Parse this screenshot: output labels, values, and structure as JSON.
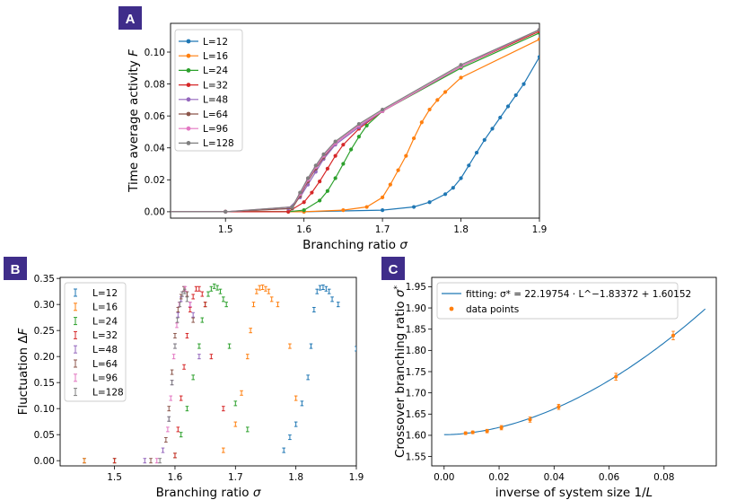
{
  "panel_labels": [
    "A",
    "B",
    "C"
  ],
  "colors": {
    "L=12": "#1f77b4",
    "L=16": "#ff7f0e",
    "L=24": "#2ca02c",
    "L=32": "#d62728",
    "L=48": "#9467bd",
    "L=64": "#8c564b",
    "L=96": "#e377c2",
    "L=128": "#7f7f7f",
    "badge": "#3f2d8a"
  },
  "chart_data": [
    {
      "id": "A",
      "type": "line",
      "xlabel": "Branching ratio σ",
      "ylabel": "Time average activity F",
      "xlim": [
        1.43,
        1.9
      ],
      "ylim": [
        -0.004,
        0.118
      ],
      "xticks": [
        "1.5",
        "1.6",
        "1.7",
        "1.8",
        "1.9"
      ],
      "xtick_values": [
        1.5,
        1.6,
        1.7,
        1.8,
        1.9
      ],
      "yticks": [
        "0.00",
        "0.02",
        "0.04",
        "0.06",
        "0.08",
        "0.10"
      ],
      "ytick_values": [
        0,
        0.02,
        0.04,
        0.06,
        0.08,
        0.1
      ],
      "legend": "top-left",
      "series": [
        {
          "name": "L=12",
          "x": [
            1.4,
            1.5,
            1.6,
            1.7,
            1.74,
            1.76,
            1.78,
            1.79,
            1.8,
            1.81,
            1.82,
            1.83,
            1.84,
            1.85,
            1.86,
            1.87,
            1.88,
            1.9
          ],
          "y": [
            0,
            0,
            0,
            0.001,
            0.003,
            0.006,
            0.011,
            0.015,
            0.021,
            0.029,
            0.037,
            0.045,
            0.052,
            0.059,
            0.066,
            0.073,
            0.08,
            0.097
          ]
        },
        {
          "name": "L=16",
          "x": [
            1.4,
            1.5,
            1.6,
            1.65,
            1.68,
            1.7,
            1.71,
            1.72,
            1.73,
            1.74,
            1.75,
            1.76,
            1.77,
            1.78,
            1.8,
            1.9
          ],
          "y": [
            0,
            0,
            0,
            0.001,
            0.003,
            0.009,
            0.017,
            0.026,
            0.035,
            0.046,
            0.056,
            0.064,
            0.07,
            0.075,
            0.084,
            0.108
          ]
        },
        {
          "name": "L=24",
          "x": [
            1.4,
            1.5,
            1.58,
            1.6,
            1.62,
            1.63,
            1.64,
            1.65,
            1.66,
            1.67,
            1.68,
            1.7,
            1.8,
            1.9
          ],
          "y": [
            0,
            0,
            0,
            0.001,
            0.007,
            0.013,
            0.021,
            0.03,
            0.039,
            0.047,
            0.054,
            0.063,
            0.09,
            0.112
          ]
        },
        {
          "name": "L=32",
          "x": [
            1.4,
            1.5,
            1.58,
            1.6,
            1.61,
            1.62,
            1.63,
            1.64,
            1.65,
            1.67,
            1.7,
            1.8,
            1.9
          ],
          "y": [
            0,
            0,
            0,
            0.006,
            0.012,
            0.019,
            0.027,
            0.035,
            0.042,
            0.052,
            0.063,
            0.091,
            0.113
          ]
        },
        {
          "name": "L=48",
          "x": [
            1.4,
            1.5,
            1.58,
            1.595,
            1.605,
            1.615,
            1.625,
            1.64,
            1.67,
            1.7,
            1.8,
            1.9
          ],
          "y": [
            0,
            0,
            0.002,
            0.009,
            0.017,
            0.025,
            0.033,
            0.042,
            0.053,
            0.063,
            0.091,
            0.114
          ]
        },
        {
          "name": "L=64",
          "x": [
            1.4,
            1.5,
            1.585,
            1.595,
            1.605,
            1.615,
            1.625,
            1.64,
            1.67,
            1.7,
            1.8,
            1.9
          ],
          "y": [
            0,
            0,
            0.002,
            0.01,
            0.019,
            0.027,
            0.034,
            0.043,
            0.054,
            0.063,
            0.091,
            0.114
          ]
        },
        {
          "name": "L=96",
          "x": [
            1.4,
            1.5,
            1.585,
            1.595,
            1.605,
            1.615,
            1.625,
            1.64,
            1.67,
            1.7,
            1.8,
            1.9
          ],
          "y": [
            0,
            0,
            0.003,
            0.011,
            0.02,
            0.028,
            0.035,
            0.043,
            0.054,
            0.063,
            0.091,
            0.114
          ]
        },
        {
          "name": "L=128",
          "x": [
            1.4,
            1.5,
            1.585,
            1.595,
            1.605,
            1.615,
            1.625,
            1.64,
            1.67,
            1.7,
            1.8,
            1.9
          ],
          "y": [
            0,
            0,
            0.003,
            0.012,
            0.021,
            0.029,
            0.036,
            0.044,
            0.055,
            0.064,
            0.092,
            0.114
          ]
        }
      ]
    },
    {
      "id": "B",
      "type": "scatter",
      "xlabel": "Branching ratio σ",
      "ylabel": "Fluctuation ΔF",
      "xlim": [
        1.41,
        1.9
      ],
      "ylim": [
        -0.01,
        0.352
      ],
      "xticks": [
        "1.5",
        "1.6",
        "1.7",
        "1.8",
        "1.9"
      ],
      "xtick_values": [
        1.5,
        1.6,
        1.7,
        1.8,
        1.9
      ],
      "yticks": [
        "0.00",
        "0.05",
        "0.10",
        "0.15",
        "0.20",
        "0.25",
        "0.30",
        "0.35"
      ],
      "ytick_values": [
        0,
        0.05,
        0.1,
        0.15,
        0.2,
        0.25,
        0.3,
        0.35
      ],
      "legend": "top-left",
      "series": [
        {
          "name": "L=12",
          "x": [
            1.45,
            1.78,
            1.79,
            1.8,
            1.81,
            1.82,
            1.825,
            1.83,
            1.835,
            1.84,
            1.845,
            1.85,
            1.855,
            1.86,
            1.87,
            1.9
          ],
          "y": [
            0,
            0.02,
            0.045,
            0.07,
            0.11,
            0.16,
            0.22,
            0.29,
            0.325,
            0.332,
            0.333,
            0.33,
            0.325,
            0.31,
            0.3,
            0.215
          ]
        },
        {
          "name": "L=16",
          "x": [
            1.45,
            1.68,
            1.7,
            1.71,
            1.72,
            1.725,
            1.73,
            1.735,
            1.74,
            1.745,
            1.75,
            1.755,
            1.76,
            1.77,
            1.79,
            1.8
          ],
          "y": [
            0,
            0.02,
            0.07,
            0.13,
            0.2,
            0.25,
            0.3,
            0.325,
            0.332,
            0.333,
            0.33,
            0.325,
            0.31,
            0.3,
            0.22,
            0.12
          ]
        },
        {
          "name": "L=24",
          "x": [
            1.5,
            1.6,
            1.61,
            1.62,
            1.63,
            1.64,
            1.645,
            1.65,
            1.655,
            1.66,
            1.665,
            1.67,
            1.675,
            1.68,
            1.685,
            1.69,
            1.7,
            1.72
          ],
          "y": [
            0,
            0.01,
            0.05,
            0.1,
            0.16,
            0.22,
            0.27,
            0.3,
            0.32,
            0.33,
            0.335,
            0.332,
            0.325,
            0.31,
            0.3,
            0.22,
            0.11,
            0.06
          ]
        },
        {
          "name": "L=32",
          "x": [
            1.5,
            1.6,
            1.605,
            1.61,
            1.615,
            1.62,
            1.625,
            1.63,
            1.635,
            1.64,
            1.645,
            1.65,
            1.66,
            1.68
          ],
          "y": [
            0,
            0.01,
            0.06,
            0.12,
            0.18,
            0.24,
            0.29,
            0.315,
            0.33,
            0.33,
            0.32,
            0.3,
            0.2,
            0.1
          ]
        },
        {
          "name": "L=48",
          "x": [
            1.55,
            1.58,
            1.59,
            1.595,
            1.6,
            1.605,
            1.61,
            1.615,
            1.62,
            1.625,
            1.63,
            1.64
          ],
          "y": [
            0,
            0.02,
            0.08,
            0.15,
            0.22,
            0.28,
            0.31,
            0.33,
            0.32,
            0.3,
            0.28,
            0.2
          ]
        },
        {
          "name": "L=64",
          "x": [
            1.56,
            1.585,
            1.59,
            1.595,
            1.6,
            1.605,
            1.61,
            1.615,
            1.62,
            1.63
          ],
          "y": [
            0,
            0.04,
            0.1,
            0.17,
            0.24,
            0.29,
            0.315,
            0.33,
            0.32,
            0.27
          ]
        },
        {
          "name": "L=96",
          "x": [
            1.57,
            1.588,
            1.593,
            1.598,
            1.603,
            1.607,
            1.612,
            1.617,
            1.625
          ],
          "y": [
            0,
            0.06,
            0.12,
            0.2,
            0.26,
            0.3,
            0.32,
            0.33,
            0.3
          ]
        },
        {
          "name": "L=128",
          "x": [
            1.575,
            1.59,
            1.595,
            1.6,
            1.604,
            1.608,
            1.612,
            1.616,
            1.62
          ],
          "y": [
            0,
            0.08,
            0.15,
            0.22,
            0.27,
            0.3,
            0.32,
            0.325,
            0.31
          ]
        }
      ]
    },
    {
      "id": "C",
      "type": "scatter",
      "xlabel": "inverse of system size 1/L",
      "ylabel": "Crossover branching ratio σ*",
      "xlim": [
        -0.0045,
        0.099
      ],
      "ylim": [
        1.528,
        1.972
      ],
      "xticks": [
        "0.00",
        "0.02",
        "0.04",
        "0.06",
        "0.08"
      ],
      "xtick_values": [
        0,
        0.02,
        0.04,
        0.06,
        0.08
      ],
      "yticks": [
        "1.55",
        "1.60",
        "1.65",
        "1.70",
        "1.75",
        "1.80",
        "1.85",
        "1.90",
        "1.95"
      ],
      "ytick_values": [
        1.55,
        1.6,
        1.65,
        1.7,
        1.75,
        1.8,
        1.85,
        1.9,
        1.95
      ],
      "legend": "top-left",
      "fit": {
        "label": "fitting: σ* = 22.19754 · L^−1.83372 + 1.60152",
        "a": 22.19754,
        "b": 1.83372,
        "c": 1.60152,
        "x_range": [
          0,
          0.095
        ],
        "color": "#1f77b4"
      },
      "points": {
        "label": "data points",
        "color": "#ff7f0e",
        "x": [
          0.0078125,
          0.0104167,
          0.015625,
          0.0208333,
          0.03125,
          0.0416667,
          0.0625,
          0.0833333
        ],
        "y": [
          1.605,
          1.607,
          1.61,
          1.618,
          1.637,
          1.667,
          1.738,
          1.835
        ],
        "err": [
          0.003,
          0.003,
          0.004,
          0.005,
          0.006,
          0.006,
          0.008,
          0.01
        ]
      }
    }
  ]
}
